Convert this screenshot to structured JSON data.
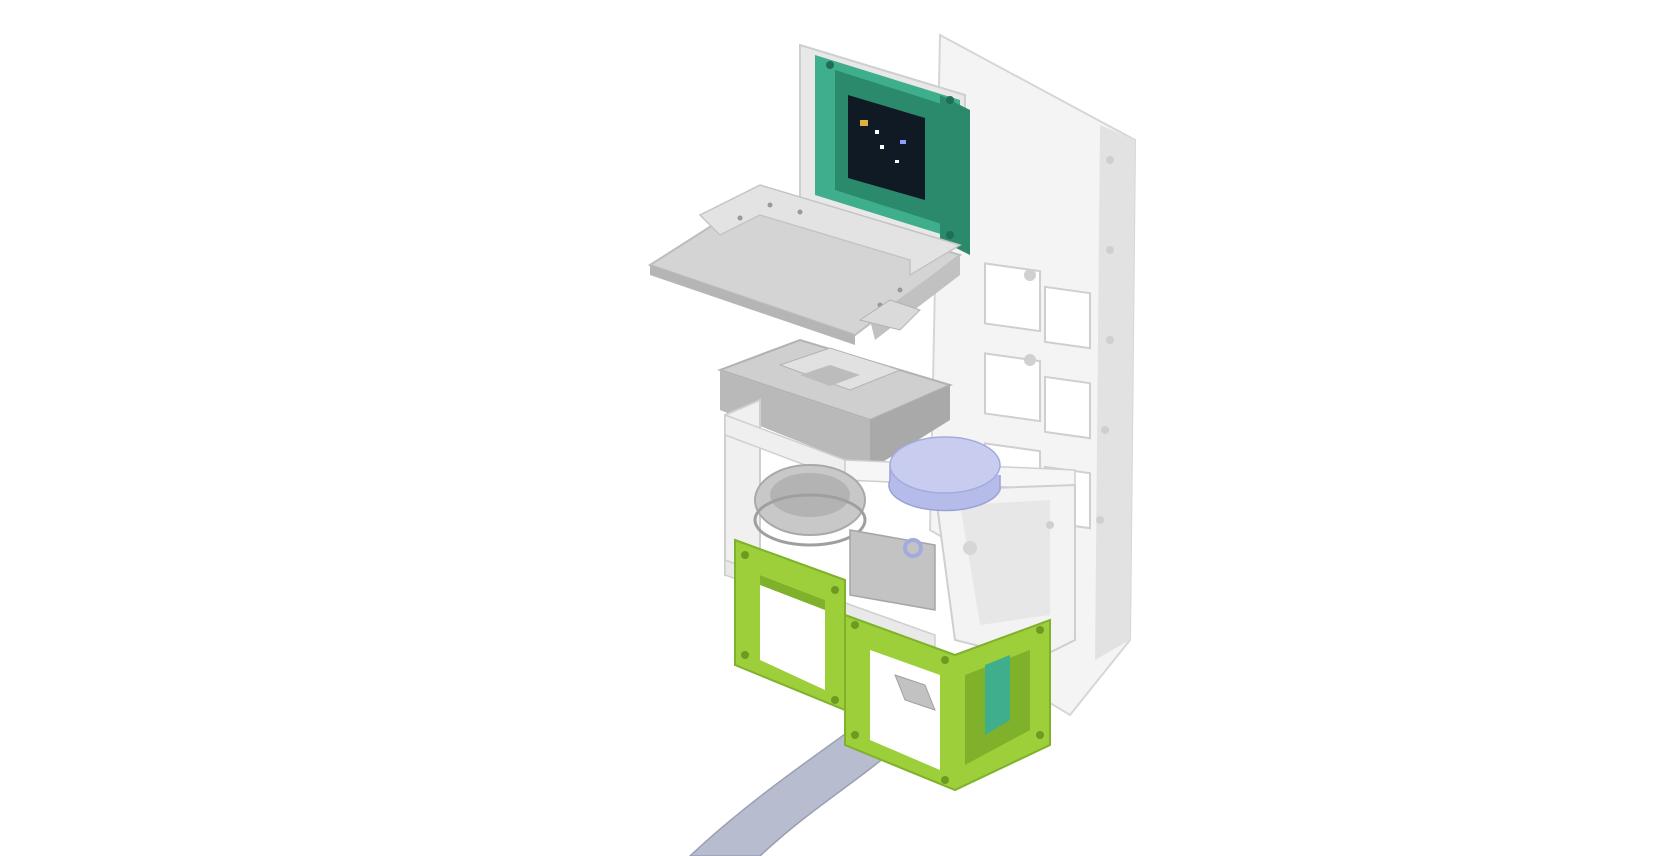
{
  "scene": {
    "subject": "modular-3d-printed-assembly-render",
    "background_color": "#ffffff",
    "colors": {
      "white_plastic": "#f2f2f2",
      "white_shade": "#d9d9d9",
      "grey_plastic": "#c9c9c9",
      "grey_shade": "#a9a9a9",
      "teal": "#3fae8c",
      "teal_dark": "#2b8a6c",
      "lime": "#9ccf3a",
      "lime_dark": "#7fb12a",
      "lavender": "#c8cdf0",
      "cable": "#b8bccf",
      "pcb": "#0f1a24"
    },
    "parts": [
      "display-module",
      "side-frame",
      "tilt-plate",
      "gimbal-mount",
      "white-cube-frame",
      "lavender-cylinder",
      "green-base-frame-left",
      "green-base-frame-right",
      "ribbon-cable"
    ]
  }
}
